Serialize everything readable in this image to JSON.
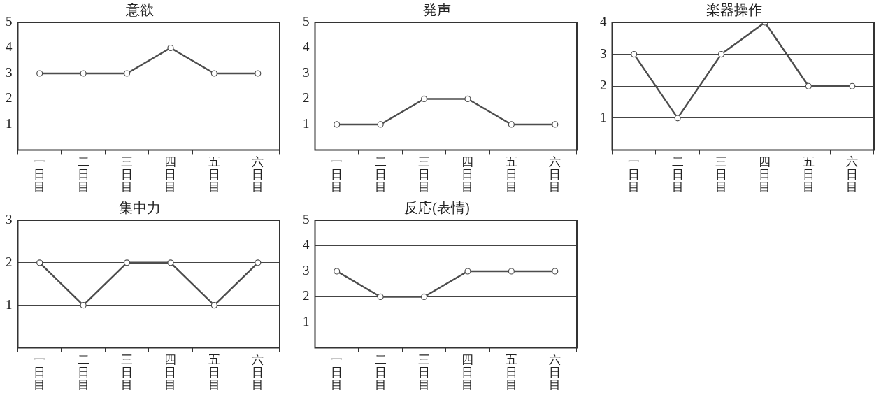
{
  "chart_data": [
    {
      "type": "line",
      "title": "意欲",
      "categories": [
        "一日目",
        "二日目",
        "三日目",
        "四日目",
        "五日目",
        "六日目"
      ],
      "series": [
        {
          "color": "#4d4d4d",
          "values": [
            3,
            3,
            3,
            4,
            3,
            3
          ]
        }
      ],
      "ylim": [
        0,
        5
      ],
      "yticks": [
        1,
        2,
        3,
        4,
        5
      ],
      "grid": "y",
      "marker": "circle",
      "legend": false
    },
    {
      "type": "line",
      "title": "発声",
      "categories": [
        "一日目",
        "二日目",
        "三日目",
        "四日目",
        "五日目",
        "六日目"
      ],
      "series": [
        {
          "color": "#4d4d4d",
          "values": [
            1,
            1,
            2,
            2,
            1,
            1
          ]
        }
      ],
      "ylim": [
        0,
        5
      ],
      "yticks": [
        1,
        2,
        3,
        4,
        5
      ],
      "grid": "y",
      "marker": "circle",
      "legend": false
    },
    {
      "type": "line",
      "title": "楽器操作",
      "categories": [
        "一日目",
        "二日目",
        "三日目",
        "四日目",
        "五日目",
        "六日目"
      ],
      "series": [
        {
          "color": "#4d4d4d",
          "values": [
            3,
            1,
            3,
            4,
            2,
            2
          ]
        }
      ],
      "ylim": [
        0,
        4
      ],
      "yticks": [
        1,
        2,
        3,
        4
      ],
      "grid": "y",
      "marker": "circle",
      "legend": false
    },
    {
      "type": "line",
      "title": "集中力",
      "categories": [
        "一日目",
        "二日目",
        "三日目",
        "四日目",
        "五日目",
        "六日目"
      ],
      "series": [
        {
          "color": "#4d4d4d",
          "values": [
            2,
            1,
            2,
            2,
            1,
            2
          ]
        }
      ],
      "ylim": [
        0,
        3
      ],
      "yticks": [
        1,
        2,
        3
      ],
      "grid": "y",
      "marker": "circle",
      "legend": false
    },
    {
      "type": "line",
      "title": "反応(表情)",
      "categories": [
        "一日目",
        "二日目",
        "三日目",
        "四日目",
        "五日目",
        "六日目"
      ],
      "series": [
        {
          "color": "#4d4d4d",
          "values": [
            3,
            2,
            2,
            3,
            3,
            3
          ]
        }
      ],
      "ylim": [
        0,
        5
      ],
      "yticks": [
        1,
        2,
        3,
        4,
        5
      ],
      "grid": "y",
      "marker": "circle",
      "legend": false
    }
  ]
}
